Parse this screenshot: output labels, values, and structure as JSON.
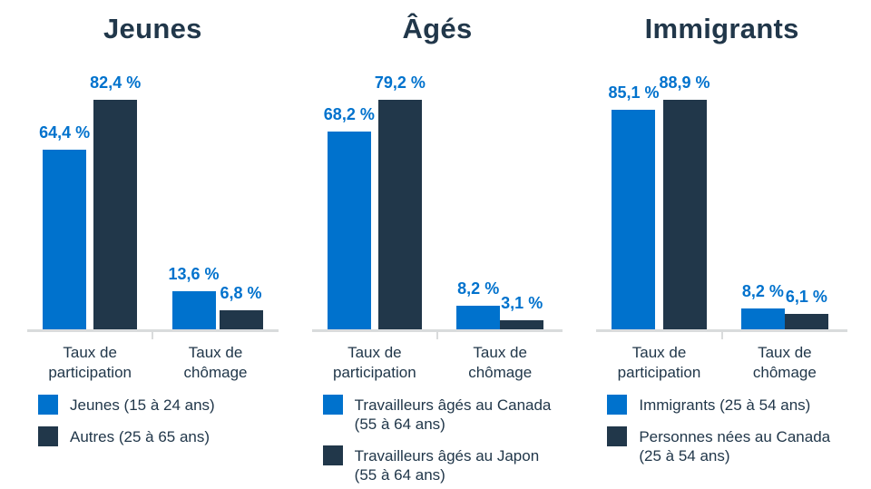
{
  "colors": {
    "series1_blue": "#0072CD",
    "series2_navy": "#21374A",
    "value_label_blue": "#0072CD",
    "axis_line_gray": "#D9DBDC",
    "text_dark": "#21374A",
    "background": "#FFFFFF"
  },
  "chart_data": [
    {
      "type": "bar",
      "title": "Jeunes",
      "categories": [
        "Taux de participation",
        "Taux de chômage"
      ],
      "categories_lines": [
        [
          "Taux de",
          "participation"
        ],
        [
          "Taux de",
          "chômage"
        ]
      ],
      "series": [
        {
          "name": "Jeunes (15 à 24 ans)",
          "name_lines": [
            "Jeunes (15 à 24 ans)"
          ],
          "color": "#0072CD",
          "values": [
            64.4,
            13.6
          ],
          "value_labels": [
            "64,4 %",
            "13,6 %"
          ]
        },
        {
          "name": "Autres (25 à 65 ans)",
          "name_lines": [
            "Autres (25 à 65 ans)"
          ],
          "color": "#21374A",
          "values": [
            82.4,
            6.8
          ],
          "value_labels": [
            "82,4 %",
            "6,8 %"
          ]
        }
      ],
      "unit": "%",
      "ylim": [
        0,
        90
      ],
      "grid": false,
      "legend_position": "bottom-left"
    },
    {
      "type": "bar",
      "title": "Âgés",
      "categories": [
        "Taux de participation",
        "Taux de chômage"
      ],
      "categories_lines": [
        [
          "Taux de",
          "participation"
        ],
        [
          "Taux de",
          "chômage"
        ]
      ],
      "series": [
        {
          "name": "Travailleurs âgés au Canada (55 à 64 ans)",
          "name_lines": [
            "Travailleurs âgés au Canada",
            "(55 à 64 ans)"
          ],
          "color": "#0072CD",
          "values": [
            68.2,
            8.2
          ],
          "value_labels": [
            "68,2 %",
            "8,2 %"
          ]
        },
        {
          "name": "Travailleurs âgés au Japon (55 à 64 ans)",
          "name_lines": [
            "Travailleurs âgés au Japon",
            "(55 à 64 ans)"
          ],
          "color": "#21374A",
          "values": [
            79.2,
            3.1
          ],
          "value_labels": [
            "79,2 %",
            "3,1 %"
          ]
        }
      ],
      "unit": "%",
      "ylim": [
        0,
        90
      ],
      "grid": false,
      "legend_position": "bottom-left"
    },
    {
      "type": "bar",
      "title": "Immigrants",
      "categories": [
        "Taux de participation",
        "Taux de chômage"
      ],
      "categories_lines": [
        [
          "Taux de",
          "participation"
        ],
        [
          "Taux de",
          "chômage"
        ]
      ],
      "series": [
        {
          "name": "Immigrants (25 à 54 ans)",
          "name_lines": [
            "Immigrants (25 à 54 ans)"
          ],
          "color": "#0072CD",
          "values": [
            85.1,
            8.2
          ],
          "value_labels": [
            "85,1 %",
            "8,2 %"
          ]
        },
        {
          "name": "Personnes nées au Canada (25 à 54 ans)",
          "name_lines": [
            "Personnes nées au Canada",
            "(25 à 54 ans)"
          ],
          "color": "#21374A",
          "values": [
            88.9,
            6.1
          ],
          "value_labels": [
            "88,9 %",
            "6,1 %"
          ]
        }
      ],
      "unit": "%",
      "ylim": [
        0,
        100
      ],
      "grid": false,
      "legend_position": "bottom-left"
    }
  ]
}
